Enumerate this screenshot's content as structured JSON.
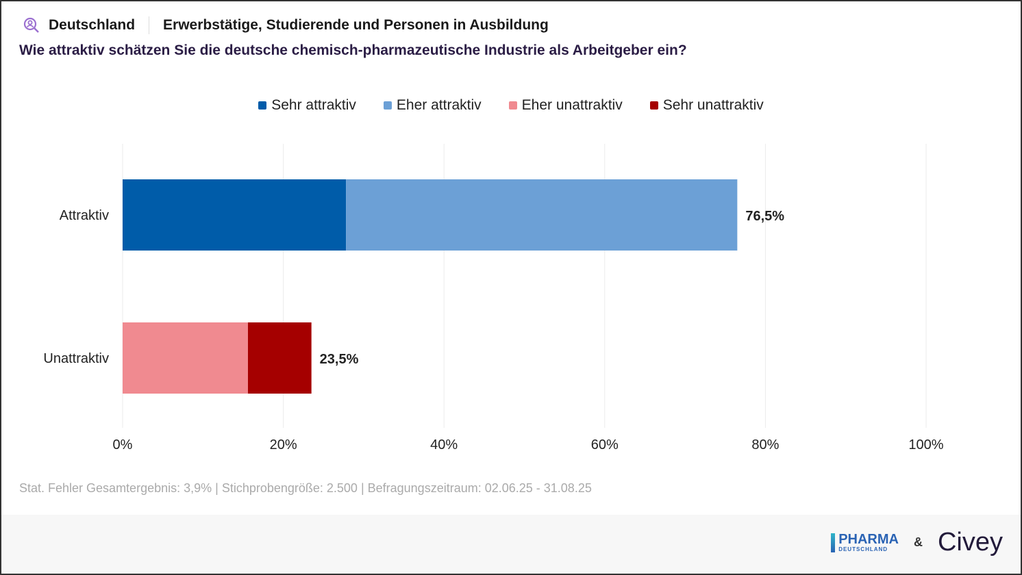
{
  "header": {
    "region": "Deutschland",
    "population": "Erwerbstätige, Studierende und Personen in Ausbildung",
    "question": "Wie attraktiv schätzen Sie die deutsche chemisch-pharmazeutische Industrie als Arbeitgeber ein?",
    "icon": "search-person-icon"
  },
  "chart_data": {
    "type": "bar",
    "orientation": "horizontal",
    "stacked": true,
    "categories": [
      "Attraktiv",
      "Unattraktiv"
    ],
    "series": [
      {
        "name": "Sehr attraktiv",
        "color": "#005ca9",
        "values": [
          27.8,
          0
        ]
      },
      {
        "name": "Eher attraktiv",
        "color": "#6ca0d6",
        "values": [
          48.7,
          0
        ]
      },
      {
        "name": "Eher unattraktiv",
        "color": "#f08a90",
        "values": [
          0,
          15.6
        ]
      },
      {
        "name": "Sehr unattraktiv",
        "color": "#a50000",
        "values": [
          0,
          7.9
        ]
      }
    ],
    "totals": [
      "76,5%",
      "23,5%"
    ],
    "xlim": [
      0,
      100
    ],
    "xticks": [
      "0%",
      "20%",
      "40%",
      "60%",
      "80%",
      "100%"
    ],
    "grid": true,
    "legend": "top"
  },
  "footer": {
    "note": "Stat. Fehler Gesamtergebnis: 3,9% | Stichprobengröße: 2.500 | Befragungszeitraum: 02.06.25 - 31.08.25",
    "logo1_top": "PHARMA",
    "logo1_bottom": "DEUTSCHLAND",
    "amp": "&",
    "logo2": "Civey"
  }
}
